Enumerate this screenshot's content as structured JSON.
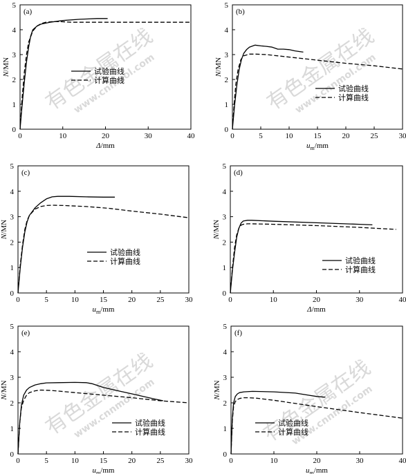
{
  "watermark": {
    "cn": "有色金属在线",
    "url": "www.cnnmol.com"
  },
  "legend_labels": [
    "试验曲线",
    "计算曲线"
  ],
  "chart_data": [
    {
      "type": "line",
      "panel": "(a)",
      "xlabel_italic": "Δ",
      "xlabel_unit": "/mm",
      "ylabel": "N/MN",
      "xlim": [
        0,
        40
      ],
      "ylim": [
        0,
        5
      ],
      "xticks": [
        0,
        10,
        20,
        30,
        40
      ],
      "yticks": [
        0,
        1,
        2,
        3,
        4,
        5
      ],
      "grid": false,
      "legend_position": "center",
      "series": [
        {
          "name": "试验曲线",
          "style": "solid",
          "x": [
            0,
            0.5,
            1,
            1.5,
            2,
            2.5,
            3,
            4,
            5,
            7,
            10,
            14,
            18,
            20.5
          ],
          "y": [
            0,
            1.0,
            1.9,
            2.7,
            3.3,
            3.75,
            4.0,
            4.15,
            4.23,
            4.3,
            4.37,
            4.42,
            4.45,
            4.45
          ]
        },
        {
          "name": "计算曲线",
          "style": "dashed",
          "x": [
            0,
            0.5,
            1,
            1.5,
            2,
            3,
            4,
            5,
            6,
            8,
            10,
            12,
            20,
            30,
            40
          ],
          "y": [
            0,
            1.3,
            2.3,
            3.0,
            3.5,
            3.95,
            4.15,
            4.25,
            4.3,
            4.33,
            4.32,
            4.3,
            4.3,
            4.3,
            4.3
          ]
        }
      ]
    },
    {
      "type": "line",
      "panel": "(b)",
      "xlabel_italic": "u",
      "xlabel_sub": "m",
      "xlabel_unit": "/mm",
      "ylabel": "N/MN",
      "xlim": [
        0,
        30
      ],
      "ylim": [
        0,
        5
      ],
      "xticks": [
        0,
        5,
        10,
        15,
        20,
        25,
        30
      ],
      "yticks": [
        0,
        1,
        2,
        3,
        4,
        5
      ],
      "grid": false,
      "legend_position": "center-right",
      "series": [
        {
          "name": "试验曲线",
          "style": "solid",
          "x": [
            0,
            0.4,
            0.8,
            1.2,
            1.6,
            2,
            2.5,
            3,
            4,
            5,
            6,
            7,
            8,
            9,
            10,
            11,
            12.5
          ],
          "y": [
            0,
            1.0,
            1.8,
            2.4,
            2.8,
            3.05,
            3.2,
            3.3,
            3.38,
            3.35,
            3.33,
            3.3,
            3.22,
            3.22,
            3.2,
            3.15,
            3.1
          ]
        },
        {
          "name": "计算曲线",
          "style": "dashed",
          "x": [
            0,
            0.3,
            0.6,
            1,
            1.5,
            2,
            3,
            4,
            6,
            8,
            12,
            16,
            20,
            25,
            30
          ],
          "y": [
            0,
            1.0,
            1.8,
            2.4,
            2.8,
            2.95,
            3.02,
            3.02,
            3.0,
            2.95,
            2.85,
            2.75,
            2.65,
            2.55,
            2.42
          ]
        }
      ]
    },
    {
      "type": "line",
      "panel": "(c)",
      "xlabel_italic": "u",
      "xlabel_sub": "m",
      "xlabel_unit": "/mm",
      "ylabel": "N/MN",
      "xlim": [
        0,
        30
      ],
      "ylim": [
        0,
        5
      ],
      "xticks": [
        0,
        5,
        10,
        15,
        20,
        25,
        30
      ],
      "yticks": [
        0,
        1,
        2,
        3,
        4,
        5
      ],
      "grid": false,
      "legend_position": "center-right",
      "series": [
        {
          "name": "试验曲线",
          "style": "solid",
          "x": [
            0,
            0.4,
            0.8,
            1.2,
            1.6,
            2,
            3,
            4,
            5,
            6,
            7,
            9,
            12,
            15,
            17
          ],
          "y": [
            0,
            1.0,
            1.8,
            2.4,
            2.8,
            3.05,
            3.35,
            3.55,
            3.7,
            3.78,
            3.8,
            3.8,
            3.78,
            3.77,
            3.77
          ]
        },
        {
          "name": "计算曲线",
          "style": "dashed",
          "x": [
            0,
            0.4,
            0.8,
            1.2,
            1.6,
            2,
            3,
            4,
            5,
            6,
            8,
            12,
            16,
            20,
            25,
            30
          ],
          "y": [
            0,
            1.1,
            1.9,
            2.5,
            2.85,
            3.05,
            3.3,
            3.4,
            3.44,
            3.45,
            3.44,
            3.4,
            3.33,
            3.22,
            3.1,
            2.96
          ]
        }
      ]
    },
    {
      "type": "line",
      "panel": "(d)",
      "xlabel_italic": "Δ",
      "xlabel_unit": "/mm",
      "ylabel": "N/MN",
      "xlim": [
        0,
        40
      ],
      "ylim": [
        0,
        5
      ],
      "xticks": [
        0,
        10,
        20,
        30,
        40
      ],
      "yticks": [
        0,
        1,
        2,
        3,
        4,
        5
      ],
      "grid": false,
      "legend_position": "center-right",
      "series": [
        {
          "name": "试验曲线",
          "style": "solid",
          "x": [
            0,
            0.5,
            1,
            1.5,
            2,
            2.5,
            3,
            4,
            5,
            10,
            20,
            30,
            33
          ],
          "y": [
            0,
            0.9,
            1.6,
            2.2,
            2.55,
            2.75,
            2.83,
            2.86,
            2.86,
            2.82,
            2.76,
            2.7,
            2.68
          ]
        },
        {
          "name": "计算曲线",
          "style": "dashed",
          "x": [
            0,
            0.5,
            1,
            1.5,
            2,
            2.5,
            3,
            4,
            5,
            10,
            20,
            30,
            38.5
          ],
          "y": [
            0,
            1.0,
            1.8,
            2.3,
            2.55,
            2.67,
            2.7,
            2.72,
            2.72,
            2.7,
            2.65,
            2.58,
            2.5
          ]
        }
      ]
    },
    {
      "type": "line",
      "panel": "(e)",
      "xlabel_italic": "u",
      "xlabel_sub": "m",
      "xlabel_unit": "/mm",
      "ylabel": "N/MN",
      "xlim": [
        0,
        30
      ],
      "ylim": [
        0,
        5
      ],
      "xticks": [
        0,
        5,
        10,
        15,
        20,
        25,
        30
      ],
      "yticks": [
        0,
        1,
        2,
        3,
        4,
        5
      ],
      "grid": false,
      "legend_position": "bottom-right",
      "series": [
        {
          "name": "试验曲线",
          "style": "solid",
          "x": [
            0,
            0.3,
            0.6,
            1,
            1.5,
            2,
            3,
            4,
            5,
            7,
            10,
            12,
            13,
            15,
            18,
            20,
            22,
            24,
            25.5
          ],
          "y": [
            0,
            1.2,
            1.9,
            2.3,
            2.5,
            2.6,
            2.7,
            2.75,
            2.78,
            2.79,
            2.8,
            2.79,
            2.75,
            2.6,
            2.45,
            2.35,
            2.25,
            2.15,
            2.08
          ]
        },
        {
          "name": "计算曲线",
          "style": "dashed",
          "x": [
            0,
            0.3,
            0.6,
            1,
            1.5,
            2,
            3,
            4,
            6,
            10,
            15,
            20,
            25,
            30
          ],
          "y": [
            0,
            1.2,
            1.8,
            2.1,
            2.3,
            2.4,
            2.47,
            2.5,
            2.48,
            2.4,
            2.3,
            2.2,
            2.08,
            2.0
          ]
        }
      ]
    },
    {
      "type": "line",
      "panel": "(f)",
      "xlabel_italic": "u",
      "xlabel_sub": "m",
      "xlabel_unit": "/mm",
      "ylabel": "N/MN",
      "xlim": [
        0,
        40
      ],
      "ylim": [
        0,
        5
      ],
      "xticks": [
        0,
        10,
        20,
        30,
        40
      ],
      "yticks": [
        0,
        1,
        2,
        3,
        4,
        5
      ],
      "grid": false,
      "legend_position": "bottom-center",
      "series": [
        {
          "name": "试验曲线",
          "style": "solid",
          "x": [
            0,
            0.3,
            0.6,
            1,
            1.5,
            2,
            3,
            5,
            10,
            15,
            18,
            20,
            22
          ],
          "y": [
            0,
            1.4,
            2.0,
            2.25,
            2.35,
            2.4,
            2.43,
            2.45,
            2.43,
            2.38,
            2.3,
            2.25,
            2.22
          ]
        },
        {
          "name": "计算曲线",
          "style": "dashed",
          "x": [
            0,
            0.3,
            0.6,
            1,
            1.5,
            2,
            3,
            4,
            6,
            10,
            20,
            30,
            40
          ],
          "y": [
            0,
            1.3,
            1.85,
            2.05,
            2.13,
            2.17,
            2.2,
            2.2,
            2.18,
            2.1,
            1.85,
            1.62,
            1.4
          ]
        }
      ]
    }
  ]
}
